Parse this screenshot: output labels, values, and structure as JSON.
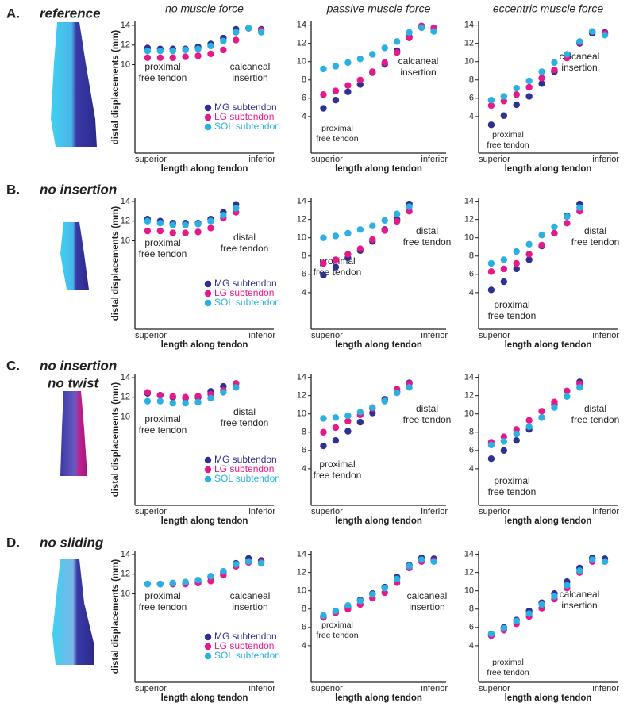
{
  "panels": [
    {
      "letter": "A.",
      "title": [
        "reference"
      ]
    },
    {
      "letter": "B.",
      "title": [
        "no insertion"
      ]
    },
    {
      "letter": "C.",
      "title": [
        "no insertion",
        "no twist"
      ]
    },
    {
      "letter": "D.",
      "title": [
        "no sliding"
      ]
    }
  ],
  "chart_data": [
    {
      "type": "scatter",
      "title": "no muscle force",
      "ylabel": "distal displacements (mm)",
      "xlabel": "length along tendon",
      "x_end_labels": [
        "superior",
        "inferior"
      ],
      "legend": true,
      "x": [
        1,
        2,
        3,
        4,
        5,
        6,
        7,
        8,
        9,
        10
      ],
      "xlim": [
        0,
        11
      ],
      "ylim": [
        1,
        14.4
      ],
      "yticks": [
        10,
        12,
        14
      ],
      "annotations": [
        {
          "lines": [
            "proximal",
            "free tendon"
          ]
        },
        {
          "lines": [
            "calcaneal",
            "insertion"
          ]
        }
      ],
      "series": [
        {
          "name": "MG subtendon",
          "color": "#2e3192",
          "values": [
            11.7,
            11.6,
            11.6,
            11.6,
            11.8,
            12.1,
            12.7,
            13.6,
            13.7,
            13.6
          ]
        },
        {
          "name": "LG subtendon",
          "color": "#e6198a",
          "values": [
            10.7,
            10.7,
            10.7,
            10.8,
            10.9,
            11.1,
            11.5,
            12.5,
            13.7,
            13.5
          ]
        },
        {
          "name": "SOL subtendon",
          "color": "#2ab0e3",
          "values": [
            11.4,
            11.4,
            11.4,
            11.5,
            11.6,
            11.9,
            12.4,
            13.3,
            13.7,
            13.3
          ]
        }
      ]
    },
    {
      "type": "scatter",
      "title": "passive muscle force",
      "xlabel": "length along tendon",
      "x_end_labels": [
        "superior",
        "inferior"
      ],
      "legend": false,
      "x": [
        1,
        2,
        3,
        4,
        5,
        6,
        7,
        8,
        9,
        10
      ],
      "xlim": [
        0,
        11
      ],
      "ylim": [
        0,
        14.4
      ],
      "yticks": [
        4,
        6,
        8,
        10,
        12,
        14
      ],
      "annotations": [
        {
          "lines": [
            "proximal",
            "free tendon"
          ]
        },
        {
          "lines": [
            "calcaneal",
            "insertion"
          ]
        }
      ],
      "series": [
        {
          "color": "#2e3192",
          "values": [
            4.9,
            5.8,
            6.7,
            7.5,
            8.8,
            9.7,
            11.2,
            12.7,
            13.9,
            13.6
          ]
        },
        {
          "color": "#e6198a",
          "values": [
            6.4,
            6.8,
            7.4,
            8.0,
            8.9,
            9.9,
            11.0,
            12.6,
            13.9,
            13.7
          ]
        },
        {
          "color": "#2ab0e3",
          "values": [
            9.2,
            9.5,
            9.9,
            10.3,
            10.8,
            11.5,
            12.2,
            13.2,
            13.7,
            13.3
          ]
        }
      ]
    },
    {
      "type": "scatter",
      "title": "eccentric muscle force",
      "xlabel": "length along tendon",
      "x_end_labels": [
        "superior",
        "inferior"
      ],
      "legend": false,
      "x": [
        1,
        2,
        3,
        4,
        5,
        6,
        7,
        8,
        9,
        10
      ],
      "xlim": [
        0,
        11
      ],
      "ylim": [
        0,
        14.4
      ],
      "yticks": [
        4,
        6,
        8,
        10,
        12,
        14
      ],
      "annotations": [
        {
          "lines": [
            "proximal",
            "free tendon"
          ]
        },
        {
          "lines": [
            "calcaneal",
            "insertion"
          ]
        }
      ],
      "series": [
        {
          "color": "#2e3192",
          "values": [
            3.1,
            4.1,
            5.3,
            6.2,
            7.6,
            8.9,
            10.4,
            12.0,
            13.1,
            13.2
          ]
        },
        {
          "color": "#e6198a",
          "values": [
            5.2,
            5.7,
            6.4,
            7.2,
            8.2,
            9.1,
            10.4,
            12.1,
            13.3,
            13.1
          ]
        },
        {
          "color": "#2ab0e3",
          "values": [
            5.8,
            6.2,
            7.1,
            7.9,
            8.9,
            9.9,
            10.8,
            12.2,
            13.3,
            12.9
          ]
        }
      ]
    },
    {
      "type": "scatter",
      "ylabel": "distal displacements (mm)",
      "xlabel": "length along tendon",
      "x_end_labels": [
        "superior",
        "inferior"
      ],
      "legend": true,
      "x": [
        1,
        2,
        3,
        4,
        5,
        6,
        7,
        8
      ],
      "xlim": [
        0,
        11
      ],
      "ylim": [
        1,
        14.4
      ],
      "yticks": [
        10,
        12,
        14
      ],
      "annotations": [
        {
          "lines": [
            "proximal",
            "free tendon"
          ]
        },
        {
          "lines": [
            "distal",
            "free tendon"
          ]
        }
      ],
      "series": [
        {
          "name": "MG subtendon",
          "color": "#2e3192",
          "values": [
            12.2,
            12.0,
            11.8,
            11.8,
            11.8,
            12.2,
            12.9,
            13.7
          ]
        },
        {
          "name": "LG subtendon",
          "color": "#e6198a",
          "values": [
            11.0,
            11.0,
            10.8,
            10.8,
            10.9,
            11.3,
            12.3,
            12.9
          ]
        },
        {
          "name": "SOL subtendon",
          "color": "#2ab0e3",
          "values": [
            12.0,
            11.8,
            11.6,
            11.6,
            11.7,
            12.0,
            12.6,
            13.3
          ]
        }
      ]
    },
    {
      "type": "scatter",
      "xlabel": "length along tendon",
      "x_end_labels": [
        "superior",
        "inferior"
      ],
      "legend": false,
      "x": [
        1,
        2,
        3,
        4,
        5,
        6,
        7,
        8
      ],
      "xlim": [
        0,
        11
      ],
      "ylim": [
        0,
        14.4
      ],
      "yticks": [
        4,
        6,
        8,
        10,
        12,
        14
      ],
      "annotations": [
        {
          "lines": [
            "proximal",
            "free tendon"
          ]
        },
        {
          "lines": [
            "distal",
            "free tendon"
          ]
        }
      ],
      "series": [
        {
          "color": "#2e3192",
          "values": [
            5.9,
            6.8,
            7.8,
            8.6,
            9.6,
            10.9,
            12.0,
            13.7
          ]
        },
        {
          "color": "#e6198a",
          "values": [
            7.2,
            7.6,
            8.2,
            8.8,
            9.8,
            10.8,
            11.8,
            12.9
          ]
        },
        {
          "color": "#2ab0e3",
          "values": [
            10.0,
            10.2,
            10.5,
            10.9,
            11.3,
            11.9,
            12.6,
            13.4
          ]
        }
      ]
    },
    {
      "type": "scatter",
      "xlabel": "length along tendon",
      "x_end_labels": [
        "superior",
        "inferior"
      ],
      "legend": false,
      "x": [
        1,
        2,
        3,
        4,
        5,
        6,
        7,
        8
      ],
      "xlim": [
        0,
        11
      ],
      "ylim": [
        0,
        14.4
      ],
      "yticks": [
        4,
        6,
        8,
        10,
        12,
        14
      ],
      "annotations": [
        {
          "lines": [
            "proximal",
            "free tendon"
          ]
        },
        {
          "lines": [
            "distal",
            "free tendon"
          ]
        }
      ],
      "series": [
        {
          "color": "#2e3192",
          "values": [
            4.3,
            5.2,
            6.6,
            7.6,
            9.1,
            10.5,
            12.4,
            13.7
          ]
        },
        {
          "color": "#e6198a",
          "values": [
            6.3,
            6.6,
            7.2,
            8.2,
            9.2,
            10.5,
            11.6,
            12.9
          ]
        },
        {
          "color": "#2ab0e3",
          "values": [
            7.2,
            7.6,
            8.5,
            9.3,
            10.3,
            11.2,
            12.3,
            13.3
          ]
        }
      ]
    },
    {
      "type": "scatter",
      "ylabel": "distal displacements (mm)",
      "xlabel": "length along tendon",
      "x_end_labels": [
        "superior",
        "inferior"
      ],
      "legend": true,
      "x": [
        1,
        2,
        3,
        4,
        5,
        6,
        7,
        8
      ],
      "xlim": [
        0,
        11
      ],
      "ylim": [
        1,
        14.4
      ],
      "yticks": [
        10,
        12,
        14
      ],
      "annotations": [
        {
          "lines": [
            "proximal",
            "free tendon"
          ]
        },
        {
          "lines": [
            "distal",
            "free tendon"
          ]
        }
      ],
      "series": [
        {
          "name": "MG subtendon",
          "color": "#2e3192",
          "values": [
            12.4,
            12.2,
            12.0,
            11.9,
            12.0,
            12.6,
            13.1,
            13.4
          ]
        },
        {
          "name": "LG subtendon",
          "color": "#e6198a",
          "values": [
            12.5,
            12.2,
            12.1,
            12.0,
            12.1,
            12.3,
            12.7,
            13.4
          ]
        },
        {
          "name": "SOL subtendon",
          "color": "#2ab0e3",
          "values": [
            11.6,
            11.6,
            11.4,
            11.4,
            11.5,
            11.9,
            12.5,
            13.0
          ]
        }
      ]
    },
    {
      "type": "scatter",
      "xlabel": "length along tendon",
      "x_end_labels": [
        "superior",
        "inferior"
      ],
      "legend": false,
      "x": [
        1,
        2,
        3,
        4,
        5,
        6,
        7,
        8
      ],
      "xlim": [
        0,
        11
      ],
      "ylim": [
        0,
        14.4
      ],
      "yticks": [
        4,
        6,
        8,
        10,
        12,
        14
      ],
      "annotations": [
        {
          "lines": [
            "proximal",
            "free tendon"
          ]
        },
        {
          "lines": [
            "distal",
            "free tendon"
          ]
        }
      ],
      "series": [
        {
          "color": "#2e3192",
          "values": [
            6.5,
            7.1,
            8.1,
            9.1,
            10.1,
            11.6,
            12.4,
            13.4
          ]
        },
        {
          "color": "#e6198a",
          "values": [
            8.0,
            8.5,
            9.2,
            9.9,
            10.6,
            11.4,
            12.7,
            13.3
          ]
        },
        {
          "color": "#2ab0e3",
          "values": [
            9.5,
            9.6,
            9.8,
            10.2,
            10.7,
            11.4,
            12.3,
            12.9
          ]
        }
      ]
    },
    {
      "type": "scatter",
      "xlabel": "length along tendon",
      "x_end_labels": [
        "superior",
        "inferior"
      ],
      "legend": false,
      "x": [
        1,
        2,
        3,
        4,
        5,
        6,
        7,
        8
      ],
      "xlim": [
        0,
        11
      ],
      "ylim": [
        0,
        14.4
      ],
      "yticks": [
        4,
        6,
        8,
        10,
        12,
        14
      ],
      "annotations": [
        {
          "lines": [
            "proximal",
            "free tendon"
          ]
        },
        {
          "lines": [
            "distal",
            "free tendon"
          ]
        }
      ],
      "series": [
        {
          "color": "#2e3192",
          "values": [
            5.1,
            6.0,
            7.1,
            8.3,
            9.6,
            11.0,
            12.5,
            13.5
          ]
        },
        {
          "color": "#e6198a",
          "values": [
            6.9,
            7.5,
            8.3,
            9.3,
            10.3,
            11.3,
            12.5,
            13.3
          ]
        },
        {
          "color": "#2ab0e3",
          "values": [
            6.6,
            7.0,
            7.8,
            8.6,
            9.6,
            10.7,
            11.9,
            12.9
          ]
        }
      ]
    },
    {
      "type": "scatter",
      "ylabel": "distal displacements (mm)",
      "xlabel": "length along tendon",
      "x_end_labels": [
        "superior",
        "inferior"
      ],
      "legend": true,
      "x": [
        1,
        2,
        3,
        4,
        5,
        6,
        7,
        8,
        9,
        10
      ],
      "xlim": [
        0,
        11
      ],
      "ylim": [
        1,
        14.4
      ],
      "yticks": [
        10,
        12,
        14
      ],
      "annotations": [
        {
          "lines": [
            "proximal",
            "free tendon"
          ]
        },
        {
          "lines": [
            "calcaneal",
            "insertion"
          ]
        }
      ],
      "series": [
        {
          "name": "MG subtendon",
          "color": "#2e3192",
          "values": [
            11.0,
            11.0,
            11.0,
            11.1,
            11.3,
            11.7,
            12.2,
            13.1,
            13.6,
            13.4
          ]
        },
        {
          "name": "LG subtendon",
          "color": "#e6198a",
          "values": [
            11.0,
            11.0,
            11.0,
            11.0,
            11.1,
            11.3,
            11.9,
            12.8,
            13.2,
            13.2
          ]
        },
        {
          "name": "SOL subtendon",
          "color": "#2ab0e3",
          "values": [
            11.0,
            11.0,
            11.1,
            11.2,
            11.4,
            11.8,
            12.3,
            13.0,
            13.3,
            13.1
          ]
        }
      ]
    },
    {
      "type": "scatter",
      "xlabel": "length along tendon",
      "x_end_labels": [
        "superior",
        "inferior"
      ],
      "legend": false,
      "x": [
        1,
        2,
        3,
        4,
        5,
        6,
        7,
        8,
        9,
        10
      ],
      "xlim": [
        0,
        11
      ],
      "ylim": [
        0,
        14.4
      ],
      "yticks": [
        4,
        6,
        8,
        10,
        12,
        14
      ],
      "annotations": [
        {
          "lines": [
            "proximal",
            "free tendon"
          ]
        },
        {
          "lines": [
            "calcaneal",
            "insertion"
          ]
        }
      ],
      "series": [
        {
          "color": "#2e3192",
          "values": [
            7.2,
            7.7,
            8.3,
            9.0,
            9.7,
            10.4,
            11.5,
            12.8,
            13.6,
            13.5
          ]
        },
        {
          "color": "#e6198a",
          "values": [
            7.1,
            7.6,
            8.0,
            8.5,
            9.2,
            9.8,
            10.9,
            12.5,
            13.2,
            13.3
          ]
        },
        {
          "color": "#2ab0e3",
          "values": [
            7.3,
            7.8,
            8.4,
            8.9,
            9.6,
            10.3,
            11.3,
            12.7,
            13.4,
            13.2
          ]
        }
      ]
    },
    {
      "type": "scatter",
      "xlabel": "length along tendon",
      "x_end_labels": [
        "superior",
        "inferior"
      ],
      "legend": false,
      "x": [
        1,
        2,
        3,
        4,
        5,
        6,
        7,
        8,
        9,
        10
      ],
      "xlim": [
        0,
        11
      ],
      "ylim": [
        0,
        14.4
      ],
      "yticks": [
        4,
        6,
        8,
        10,
        12,
        14
      ],
      "annotations": [
        {
          "lines": [
            "proximal",
            "free tendon"
          ]
        },
        {
          "lines": [
            "calcaneal",
            "insertion"
          ]
        }
      ],
      "series": [
        {
          "color": "#2e3192",
          "values": [
            5.2,
            6.0,
            6.8,
            7.8,
            8.7,
            9.7,
            11.0,
            12.5,
            13.6,
            13.5
          ]
        },
        {
          "color": "#e6198a",
          "values": [
            5.1,
            5.7,
            6.4,
            7.2,
            8.1,
            9.1,
            10.3,
            12.0,
            13.2,
            13.2
          ]
        },
        {
          "color": "#2ab0e3",
          "values": [
            5.3,
            5.9,
            6.7,
            7.5,
            8.5,
            9.4,
            10.6,
            12.2,
            13.4,
            13.2
          ]
        }
      ]
    }
  ]
}
